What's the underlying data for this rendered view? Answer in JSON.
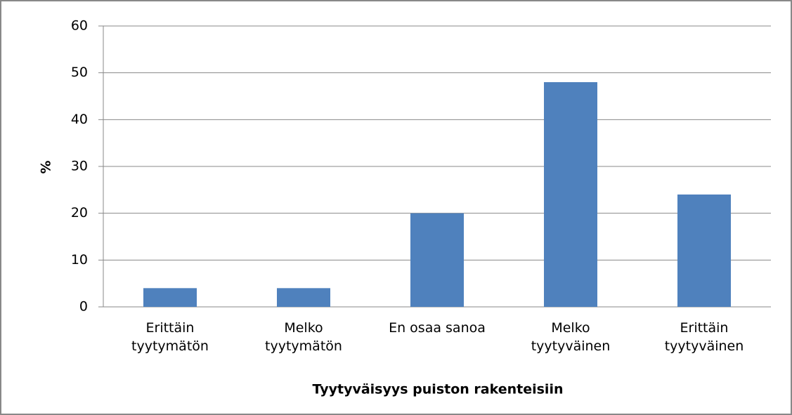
{
  "chart_data": {
    "type": "bar",
    "title": null,
    "x_label": "Tyytyväisyys puiston rakenteisiin",
    "y_label": "%",
    "categories": [
      "Erittäin tyytymätön",
      "Melko tyytymätön",
      "En osaa sanoa",
      "Melko tyytyväinen",
      "Erittäin tyytyväinen"
    ],
    "values": [
      4,
      4,
      20,
      48,
      24
    ],
    "color": "#4f81bd",
    "ylim": [
      0,
      60
    ],
    "yticks": [
      0,
      10,
      20,
      30,
      40,
      50,
      60
    ],
    "grid": true
  }
}
